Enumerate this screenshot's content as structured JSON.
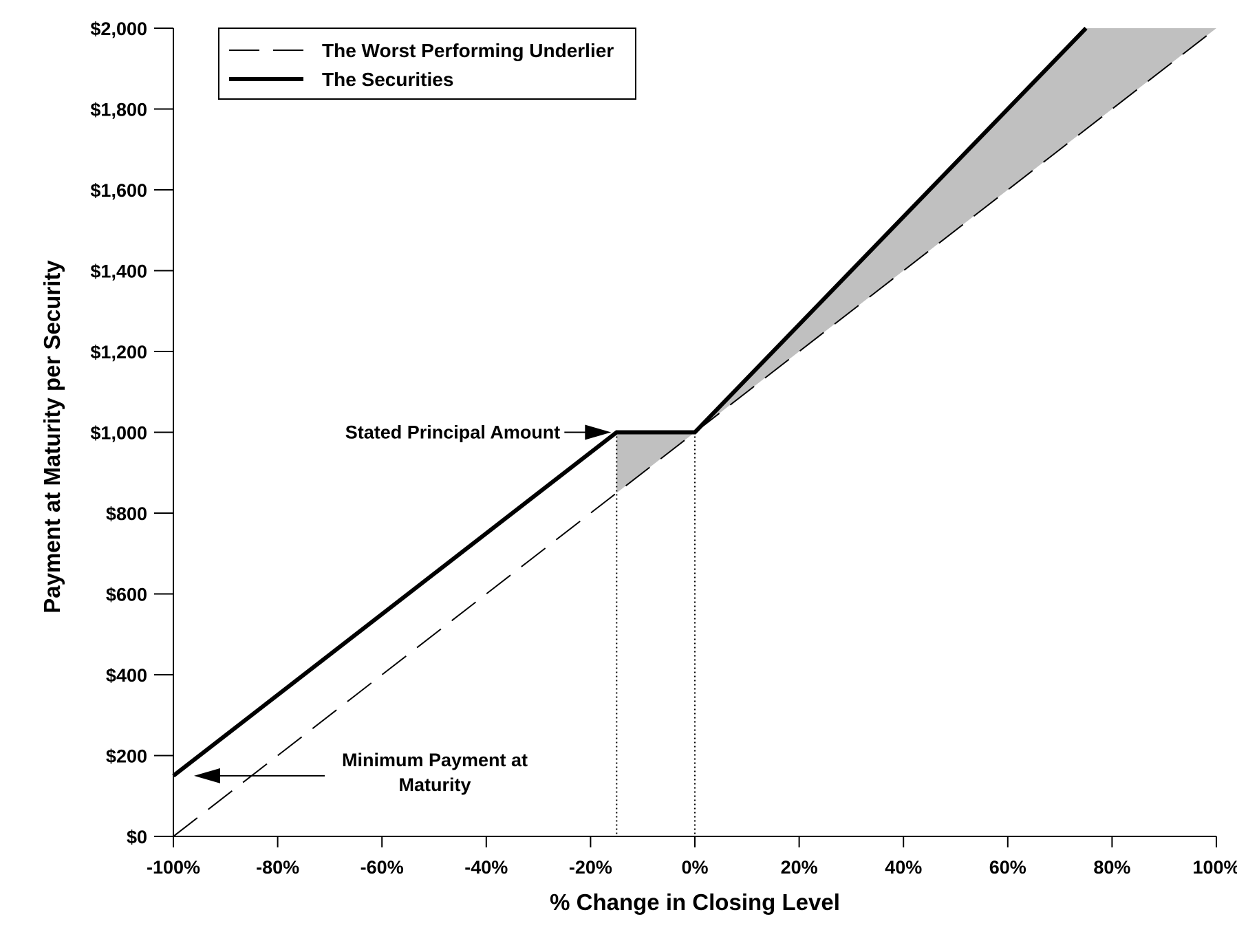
{
  "chart_data": {
    "type": "line",
    "title": "",
    "xlabel": "% Change in Closing Level",
    "ylabel": "Payment at Maturity per Security",
    "xlim": [
      -100,
      100
    ],
    "ylim": [
      0,
      2000
    ],
    "x_ticks": [
      -100,
      -80,
      -60,
      -40,
      -20,
      0,
      20,
      40,
      60,
      80,
      100
    ],
    "x_tick_labels": [
      "-100%",
      "-80%",
      "-60%",
      "-40%",
      "-20%",
      "0%",
      "20%",
      "40%",
      "60%",
      "80%",
      "100%"
    ],
    "y_ticks": [
      0,
      200,
      400,
      600,
      800,
      1000,
      1200,
      1400,
      1600,
      1800,
      2000
    ],
    "y_tick_labels": [
      "$0",
      "$200",
      "$400",
      "$600",
      "$800",
      "$1,000",
      "$1,200",
      "$1,400",
      "$1,600",
      "$1,800",
      "$2,000"
    ],
    "grid": false,
    "legend_position": "top-left",
    "series": [
      {
        "name": "The Worst Performing Underlier",
        "style": "dashed",
        "color": "#000000",
        "points": [
          [
            -100,
            0
          ],
          [
            0,
            1000
          ],
          [
            100,
            2000
          ]
        ]
      },
      {
        "name": "The Securities",
        "style": "solid-thick",
        "color": "#000000",
        "points": [
          [
            -100,
            150
          ],
          [
            -15,
            1000
          ],
          [
            0,
            1000
          ],
          [
            75,
            2000
          ]
        ]
      }
    ],
    "shaded_regions": [
      {
        "color": "#c0c0c0",
        "points": [
          [
            -15,
            850
          ],
          [
            -15,
            1000
          ],
          [
            0,
            1000
          ]
        ]
      },
      {
        "color": "#c0c0c0",
        "points": [
          [
            0,
            1000
          ],
          [
            75,
            2000
          ],
          [
            100,
            2000
          ]
        ]
      }
    ],
    "reference_lines": [
      {
        "x": -15,
        "y_to": 1000,
        "style": "dotted"
      },
      {
        "x": 0,
        "y_to": 1000,
        "style": "dotted"
      }
    ],
    "annotations": [
      {
        "lines": [
          "Stated Principal Amount"
        ],
        "arrow_direction": "right",
        "target": [
          -15,
          1000
        ]
      },
      {
        "lines": [
          "Minimum Payment at",
          "Maturity"
        ],
        "arrow_direction": "left",
        "target": [
          -100,
          150
        ]
      }
    ]
  }
}
